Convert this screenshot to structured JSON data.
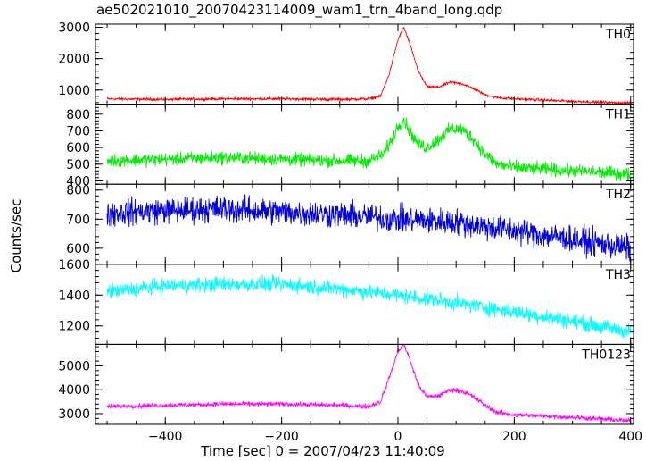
{
  "title": "ae502021010_20070423114009_wam1_trn_4band_long.qdp",
  "xlabel": "Time [sec] 0 = 2007/04/23 11:40:09",
  "ylabel": "Counts/sec",
  "chart_data": {
    "type": "line",
    "title": "ae502021010_20070423114009_wam1_trn_4band_long.qdp",
    "xlabel": "Time [sec] 0 = 2007/04/23 11:40:09",
    "ylabel": "Counts/sec",
    "xlim": [
      -520,
      405
    ],
    "x_ticks": [
      -400,
      -200,
      0,
      200,
      400
    ],
    "x_tick_labels": [
      "−400",
      "−200",
      "0",
      "200",
      "400"
    ],
    "grid": false,
    "series": [
      {
        "name": "TH0",
        "color": "#ff0000",
        "ylim": [
          550,
          3100
        ],
        "y_ticks": [
          1000,
          2000,
          3000
        ],
        "y_tick_labels": [
          "1000",
          "2000",
          "3000"
        ],
        "x": [
          -500,
          -400,
          -300,
          -200,
          -100,
          -50,
          -30,
          -15,
          0,
          10,
          20,
          35,
          50,
          70,
          90,
          110,
          130,
          150,
          170,
          200,
          300,
          400
        ],
        "values": [
          720,
          700,
          720,
          720,
          700,
          720,
          800,
          1500,
          2600,
          3000,
          2500,
          1600,
          1100,
          1100,
          1250,
          1200,
          1050,
          850,
          760,
          720,
          640,
          580
        ],
        "noise": 30
      },
      {
        "name": "TH1",
        "color": "#00ee00",
        "ylim": [
          380,
          860
        ],
        "y_ticks": [
          400,
          500,
          600,
          700,
          800
        ],
        "y_tick_labels": [
          "400",
          "500",
          "600",
          "700",
          "800"
        ],
        "x": [
          -500,
          -400,
          -300,
          -200,
          -100,
          -50,
          -25,
          -10,
          0,
          10,
          20,
          35,
          50,
          70,
          90,
          110,
          130,
          150,
          170,
          200,
          300,
          400
        ],
        "values": [
          520,
          530,
          540,
          530,
          520,
          520,
          560,
          650,
          730,
          770,
          700,
          620,
          600,
          650,
          710,
          710,
          650,
          560,
          500,
          480,
          460,
          440
        ],
        "noise": 28
      },
      {
        "name": "TH2",
        "color": "#0000dd",
        "ylim": [
          545,
          820
        ],
        "y_ticks": [
          600,
          700,
          800
        ],
        "y_tick_labels": [
          "600",
          "700",
          "800"
        ],
        "x": [
          -500,
          -400,
          -300,
          -200,
          -100,
          0,
          100,
          200,
          300,
          400
        ],
        "values": [
          720,
          730,
          735,
          725,
          715,
          700,
          690,
          660,
          630,
          600
        ],
        "noise": 32
      },
      {
        "name": "TH3",
        "color": "#00ffff",
        "ylim": [
          1080,
          1600
        ],
        "y_ticks": [
          1200,
          1400,
          1600
        ],
        "y_tick_labels": [
          "1200",
          "1400",
          "1600"
        ],
        "x": [
          -500,
          -400,
          -300,
          -200,
          -100,
          0,
          100,
          200,
          300,
          400
        ],
        "values": [
          1420,
          1460,
          1470,
          1470,
          1440,
          1400,
          1350,
          1290,
          1230,
          1160
        ],
        "noise": 35
      },
      {
        "name": "TH0123",
        "color": "#ff00ff",
        "ylim": [
          2550,
          5900
        ],
        "y_ticks": [
          3000,
          4000,
          5000
        ],
        "y_tick_labels": [
          "3000",
          "4000",
          "5000"
        ],
        "x": [
          -500,
          -400,
          -300,
          -200,
          -100,
          -50,
          -30,
          -15,
          0,
          10,
          20,
          35,
          50,
          70,
          90,
          110,
          130,
          150,
          170,
          200,
          300,
          400
        ],
        "values": [
          3300,
          3350,
          3400,
          3400,
          3350,
          3300,
          3500,
          4500,
          5600,
          5900,
          5300,
          4200,
          3700,
          3750,
          4000,
          3950,
          3700,
          3350,
          3050,
          2950,
          2850,
          2700
        ],
        "noise": 70
      }
    ]
  }
}
